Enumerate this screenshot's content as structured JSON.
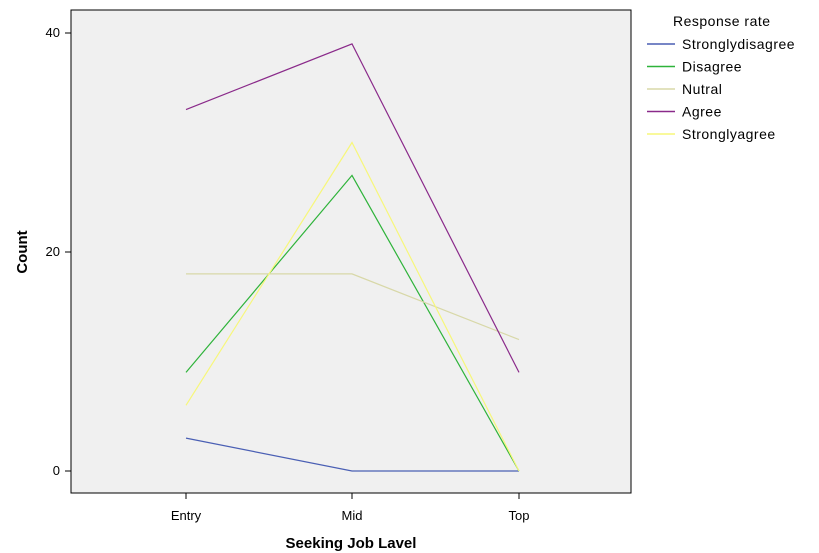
{
  "chart_data": {
    "type": "line",
    "xlabel": "Seeking Job Lavel",
    "ylabel": "Count",
    "categories": [
      "Entry",
      "Mid",
      "Top"
    ],
    "ylim": [
      0,
      42
    ],
    "yticks": [
      0,
      20,
      40
    ],
    "grid": false,
    "legend_title": "Response rate",
    "legend_position": "top-right, outside plot",
    "plot_background": "#f0f0f0",
    "series": [
      {
        "name": "Stronglydisagree",
        "color": "#4a5fb4",
        "values": [
          3,
          0,
          0
        ]
      },
      {
        "name": "Disagree",
        "color": "#2eb33a",
        "values": [
          9,
          27,
          0
        ]
      },
      {
        "name": "Nutral",
        "color": "#d8d8a8",
        "values": [
          18,
          18,
          12
        ]
      },
      {
        "name": "Agree",
        "color": "#8a2a8a",
        "values": [
          33,
          39,
          9
        ]
      },
      {
        "name": "Stronglyagree",
        "color": "#f7f77a",
        "values": [
          6,
          30,
          0
        ]
      }
    ]
  }
}
